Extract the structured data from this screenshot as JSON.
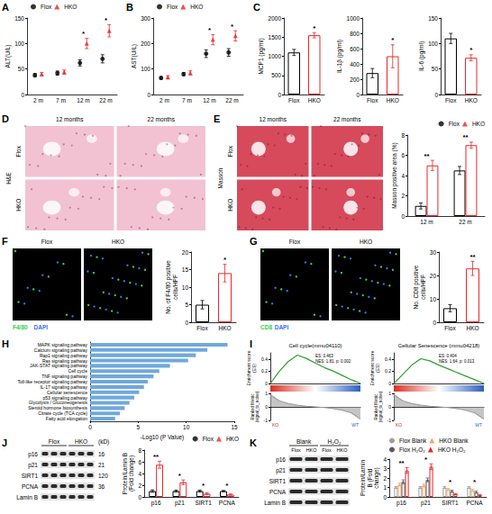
{
  "chart_data": [
    {
      "type": "scatter",
      "label": "A",
      "ylabel": "ALT(U/L)",
      "categories": [
        "2 m",
        "7 m",
        "12 m",
        "22 m"
      ],
      "series": [
        {
          "name": "Flox",
          "color": "#000000",
          "marker": "circle",
          "values": [
            38,
            42,
            62,
            70
          ],
          "errors": [
            3,
            4,
            6,
            8
          ]
        },
        {
          "name": "HKO",
          "color": "#e8262a",
          "marker": "triangle",
          "values": [
            40,
            44,
            100,
            125
          ],
          "errors": [
            3,
            4,
            10,
            12
          ]
        }
      ],
      "ylim": [
        0,
        150
      ],
      "yticks": [
        0,
        50,
        100,
        150
      ],
      "significance": [
        null,
        null,
        "*",
        "*"
      ],
      "legend": "top-left",
      "grid": false
    },
    {
      "type": "scatter",
      "label": "B",
      "ylabel": "AST(U/L)",
      "categories": [
        "2 m",
        "7 m",
        "12 m",
        "22 m"
      ],
      "series": [
        {
          "name": "Flox",
          "color": "#000000",
          "marker": "circle",
          "values": [
            65,
            80,
            160,
            165
          ],
          "errors": [
            5,
            6,
            15,
            15
          ]
        },
        {
          "name": "HKO",
          "color": "#e8262a",
          "marker": "triangle",
          "values": [
            68,
            85,
            215,
            230
          ],
          "errors": [
            6,
            8,
            20,
            20
          ]
        }
      ],
      "ylim": [
        0,
        300
      ],
      "yticks": [
        0,
        100,
        200,
        300
      ],
      "significance": [
        null,
        null,
        "*",
        "*"
      ],
      "legend": "top-left",
      "grid": false
    },
    {
      "type": "bar",
      "label": "C",
      "ylabel": "MCP1 (pg/ml)",
      "categories": [
        "Flox",
        "HKO"
      ],
      "series": [
        {
          "colors": [
            "#000000",
            "#e8262a"
          ],
          "values": [
            1100,
            1550
          ],
          "errors": [
            80,
            70
          ]
        }
      ],
      "ylim": [
        0,
        2000
      ],
      "yticks": [
        0,
        500,
        1000,
        1500,
        2000
      ],
      "significance": [
        null,
        "*"
      ],
      "grid": false
    },
    {
      "type": "bar",
      "ylabel": "IL-1β (pg/ml)",
      "categories": [
        "Flox",
        "HKO"
      ],
      "series": [
        {
          "colors": [
            "#000000",
            "#e8262a"
          ],
          "values": [
            280,
            500
          ],
          "errors": [
            60,
            150
          ]
        }
      ],
      "ylim": [
        0,
        1000
      ],
      "yticks": [
        0,
        200,
        400,
        600,
        800,
        1000
      ],
      "significance": [
        null,
        "*"
      ],
      "grid": false
    },
    {
      "type": "bar",
      "ylabel": "IL-6 (pg/ml)",
      "categories": [
        "Flox",
        "HKO"
      ],
      "series": [
        {
          "colors": [
            "#000000",
            "#e8262a"
          ],
          "values": [
            110,
            72
          ],
          "errors": [
            10,
            6
          ]
        }
      ],
      "ylim": [
        0,
        150
      ],
      "yticks": [
        0,
        50,
        100,
        150
      ],
      "significance": [
        null,
        "*"
      ],
      "grid": false
    },
    {
      "type": "image",
      "label": "D",
      "columns": [
        "12 months",
        "22 months"
      ],
      "rows": [
        "Flox",
        "HKO"
      ],
      "row_group": "H&E",
      "color": "#f2c2d2"
    },
    {
      "type": "image",
      "label": "E",
      "columns": [
        "12 months",
        "22 months"
      ],
      "rows": [
        "Flox",
        "HKO"
      ],
      "row_group": "Masson",
      "color": "#d64a5c"
    },
    {
      "type": "bar",
      "ylabel": "Masson positive area (%)",
      "categories": [
        "12 m",
        "22 m"
      ],
      "series": [
        {
          "name": "Flox",
          "color": "#000000",
          "marker": "circle",
          "values": [
            1.0,
            4.5
          ],
          "errors": [
            0.3,
            0.4
          ]
        },
        {
          "name": "HKO",
          "color": "#e8262a",
          "marker": "triangle",
          "values": [
            5.0,
            7.0
          ],
          "errors": [
            0.5,
            0.3
          ]
        }
      ],
      "ylim": [
        0,
        8
      ],
      "yticks": [
        0,
        2,
        4,
        6,
        8
      ],
      "significance": [
        "**",
        "**"
      ],
      "legend": "top-right",
      "grid": false
    },
    {
      "type": "image",
      "label": "F",
      "columns": [
        "Flox",
        "HKO"
      ],
      "stain": [
        "F4/80",
        "DAPI"
      ],
      "stain_colors": [
        "#35d04a",
        "#3b6cff"
      ],
      "color": "#000000"
    },
    {
      "type": "bar",
      "ylabel": "No. of F4/80 positive cells/HPF",
      "categories": [
        "Flox",
        "HKO"
      ],
      "series": [
        {
          "colors": [
            "#000000",
            "#e8262a"
          ],
          "values": [
            5,
            14
          ],
          "errors": [
            1.2,
            2.5
          ]
        }
      ],
      "ylim": [
        0,
        20
      ],
      "yticks": [
        0,
        5,
        10,
        15,
        20
      ],
      "significance": [
        null,
        "*"
      ],
      "grid": false
    },
    {
      "type": "image",
      "label": "G",
      "columns": [
        "Flox",
        "HKO"
      ],
      "stain": [
        "CD8",
        "DAPI"
      ],
      "stain_colors": [
        "#35d04a",
        "#3b6cff"
      ],
      "color": "#000000"
    },
    {
      "type": "bar",
      "ylabel": "No. CD8 positive cells/HPF",
      "categories": [
        "Flox",
        "HKO"
      ],
      "series": [
        {
          "colors": [
            "#000000",
            "#e8262a"
          ],
          "values": [
            6,
            23
          ],
          "errors": [
            1.5,
            3
          ]
        }
      ],
      "ylim": [
        0,
        30
      ],
      "yticks": [
        0,
        10,
        20,
        30
      ],
      "significance": [
        null,
        "**"
      ],
      "grid": false
    },
    {
      "type": "bar",
      "label": "H",
      "orientation": "horizontal",
      "xlabel": "-Log10 (P Value)",
      "categories": [
        "MAPK signaling pathway",
        "Calcium signaling pathway",
        "Rap1 signaling pathway",
        "Ras signaling pathway",
        "JAK-STAT signaling pathway",
        "Cell cycle",
        "TNF signaling pathway",
        "Toll-like receptor signaling pathway",
        "IL-17 signaling pathway",
        "Cellular senescence",
        "p53 signaling pathway",
        "Glycolysis / Gluconeogenesis",
        "Steroid hormone biosynthesis",
        "Citrate cycle (TCA cycle)",
        "Fatty acid elongation"
      ],
      "values": [
        14.3,
        12.2,
        11.0,
        10.2,
        8.3,
        7.2,
        6.6,
        6.0,
        5.6,
        5.1,
        4.6,
        4.1,
        3.6,
        3.1,
        2.6
      ],
      "color": "#6fa8dc",
      "xlim": [
        0,
        15
      ],
      "xticks": [
        0,
        5,
        10,
        15
      ],
      "grid": false
    },
    {
      "type": "gsea",
      "label": "I",
      "title": "Cell cycle(mmu04110)",
      "annotations": [
        "ES: 0.463",
        "NES: 1.81, p: 0.002"
      ],
      "group_labels": [
        "KO",
        "WT"
      ],
      "x": [
        0,
        2000,
        4000,
        6000,
        8000,
        10000,
        12000,
        14000,
        16000,
        18000,
        20000
      ],
      "xlim": [
        0,
        20000
      ],
      "tick_labels": "y",
      "es": {
        "ylabel": "Enrichment score (ES)",
        "color": "#2ca02c",
        "values": [
          0,
          0.2,
          0.36,
          0.463,
          0.41,
          0.33,
          0.26,
          0.2,
          0.13,
          0.06,
          0
        ],
        "ylim": [
          0,
          0.5
        ],
        "yticks": [
          0,
          0.2,
          0.4
        ]
      },
      "ranked": {
        "ylabel": "Ranked Metric (signal_to_noise)",
        "color": "#9e9e9e",
        "values": [
          0.9,
          0.45,
          0.25,
          0.12,
          0.05,
          0,
          -0.05,
          -0.12,
          -0.25,
          -0.45,
          -0.9
        ],
        "ylim": [
          -1,
          1
        ],
        "yticks": [
          -1,
          0,
          1
        ]
      }
    },
    {
      "type": "gsea",
      "title": "Cellular Senescence (mmu04218)",
      "annotations": [
        "ES: 0.404",
        "NES: 1.64, p: 0.013"
      ],
      "group_labels": [
        "KO",
        "WT"
      ],
      "x": [
        0,
        2000,
        4000,
        6000,
        8000,
        10000,
        12000,
        14000,
        16000,
        18000,
        20000
      ],
      "xlim": [
        0,
        20000
      ],
      "tick_labels": "y",
      "es": {
        "ylabel": "Enrichment score (ES)",
        "color": "#2ca02c",
        "values": [
          0,
          0.15,
          0.3,
          0.404,
          0.37,
          0.3,
          0.24,
          0.18,
          0.12,
          0.06,
          0
        ],
        "ylim": [
          0,
          0.5
        ],
        "yticks": [
          0,
          0.2,
          0.4
        ]
      },
      "ranked": {
        "ylabel": "Ranked Metric (signal_to_noise)",
        "color": "#9e9e9e",
        "values": [
          0.9,
          0.45,
          0.25,
          0.12,
          0.05,
          0,
          -0.05,
          -0.12,
          -0.25,
          -0.45,
          -0.9
        ],
        "ylim": [
          -1,
          1
        ],
        "yticks": [
          -1,
          0,
          1
        ]
      }
    },
    {
      "type": "blot",
      "label": "J",
      "groups": [
        "Flox",
        "HKO"
      ],
      "rows": [
        "p16",
        "p21",
        "SIRT1",
        "PCNA",
        "Lamin B"
      ],
      "kd_unit": "(kD)",
      "kd": [
        16,
        21,
        120,
        36,
        null
      ]
    },
    {
      "type": "bar",
      "ylabel": "Protein/Lamin B (Fold change)",
      "categories": [
        "p16",
        "p21",
        "SIRT1",
        "PCNA"
      ],
      "series": [
        {
          "name": "Flox",
          "color": "#000000",
          "marker": "circle",
          "values": [
            1,
            1,
            1,
            1
          ],
          "errors": [
            0.2,
            0.15,
            0.15,
            0.1
          ]
        },
        {
          "name": "HKO",
          "color": "#e8262a",
          "marker": "triangle",
          "values": [
            5.5,
            2.5,
            0.55,
            0.4
          ],
          "errors": [
            0.6,
            0.4,
            0.15,
            0.1
          ]
        }
      ],
      "ylim": [
        0,
        8
      ],
      "yticks": [
        0,
        2,
        4,
        6,
        8
      ],
      "significance": [
        "**",
        "*",
        "*",
        "*"
      ],
      "legend": "top-right",
      "grid": false
    },
    {
      "type": "blot",
      "label": "K",
      "groups": [
        "Blank",
        "H₂O₂"
      ],
      "subgroups": [
        "Flox",
        "HKO"
      ],
      "rows": [
        "p16",
        "p21",
        "SIRT1",
        "PCNA",
        "Lamin B"
      ]
    },
    {
      "type": "bar",
      "ylabel": "Protein/Lamin B (Fold change)",
      "categories": [
        "p16",
        "p21",
        "SIRT1",
        "PCNA"
      ],
      "series": [
        {
          "name": "Flox Blank",
          "color": "#9e9e9e",
          "marker": "circle",
          "values": [
            1,
            1,
            1,
            1
          ],
          "errors": [
            0.1,
            0.1,
            0.1,
            0.1
          ]
        },
        {
          "name": "HKO Blank",
          "color": "#f4a460",
          "marker": "triangle",
          "values": [
            1.3,
            1.2,
            0.8,
            0.7
          ],
          "errors": [
            0.15,
            0.15,
            0.1,
            0.1
          ]
        },
        {
          "name": "Flox H₂O₂",
          "color": "#595959",
          "marker": "circle",
          "values": [
            1.6,
            1.8,
            0.6,
            0.5
          ],
          "errors": [
            0.2,
            0.2,
            0.1,
            0.1
          ]
        },
        {
          "name": "HKO H₂O₂",
          "color": "#e8262a",
          "marker": "triangle",
          "values": [
            2.8,
            3.2,
            0.3,
            0.2
          ],
          "errors": [
            0.3,
            0.3,
            0.05,
            0.05
          ]
        }
      ],
      "ylim": [
        0,
        4
      ],
      "yticks": [
        0,
        1,
        2,
        3,
        4
      ],
      "significance": [
        "**",
        "*",
        "*",
        "*"
      ],
      "legend": "top",
      "grid": false
    }
  ]
}
